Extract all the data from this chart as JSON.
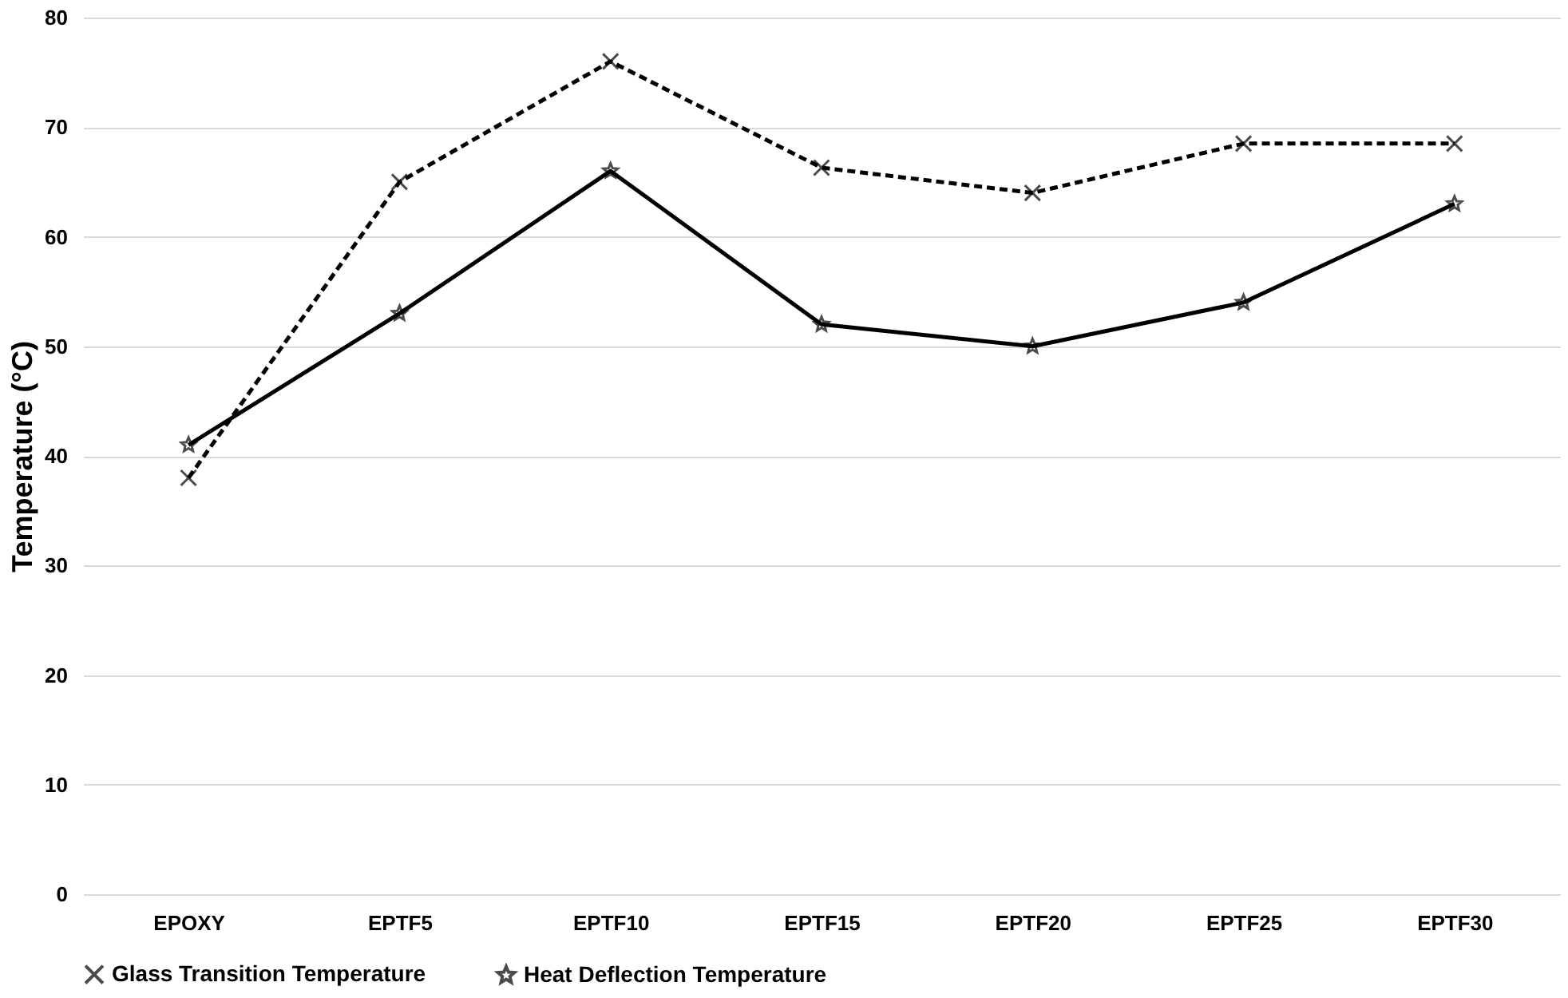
{
  "chart_data": {
    "type": "line",
    "ylabel": "Temperature (°C)",
    "categories": [
      "EPOXY",
      "EPTF5",
      "EPTF10",
      "EPTF15",
      "EPTF20",
      "EPTF25",
      "EPTF30"
    ],
    "series": [
      {
        "name": "Glass Transition Temperature",
        "color": "#000000",
        "line_style": "dashed",
        "marker": "cross",
        "values": [
          38,
          65,
          76,
          66.3,
          64,
          68.5,
          68.5
        ]
      },
      {
        "name": "Heat Deflection Temperature",
        "color": "#000000",
        "line_style": "solid",
        "marker": "star",
        "values": [
          41,
          53,
          66,
          52,
          50,
          54,
          63
        ]
      }
    ],
    "ylim": [
      0,
      80
    ],
    "yticks": [
      0,
      10,
      20,
      30,
      40,
      50,
      60,
      70,
      80
    ],
    "grid": "y",
    "legend": "bottom"
  }
}
